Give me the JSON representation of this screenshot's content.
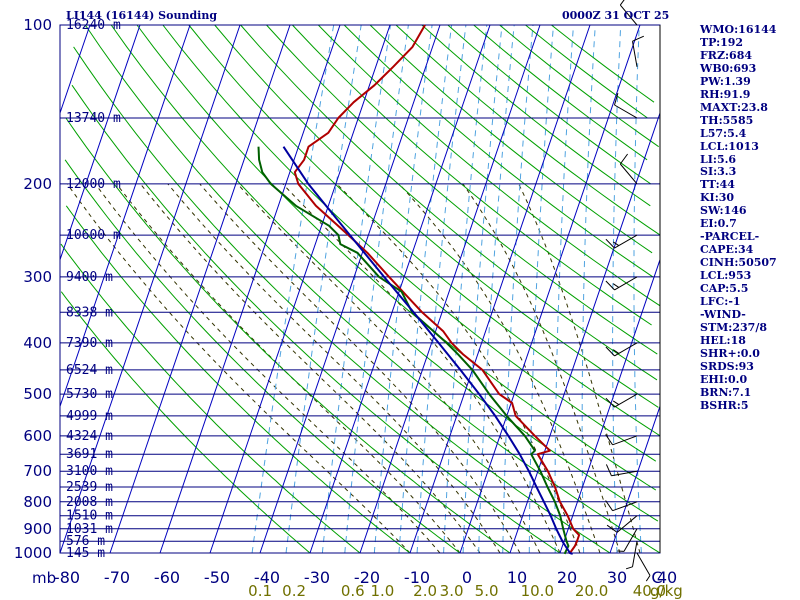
{
  "chart_data": {
    "type": "line",
    "station_title": "LI144 (16144) Sounding",
    "valid_time": "0000Z 31 OCT 25",
    "pressure_unit": "mb",
    "temperature_unit": "C",
    "mixing_ratio_unit": "g/kg",
    "pressure_levels": [
      100,
      200,
      300,
      400,
      500,
      600,
      700,
      800,
      900,
      1000
    ],
    "pressure_labels": [
      "100",
      "200",
      "300",
      "400",
      "500",
      "600",
      "700",
      "800",
      "900",
      "1000"
    ],
    "temperature_ticks": [
      -80,
      -70,
      -60,
      -50,
      -40,
      -30,
      -20,
      -10,
      0,
      10,
      20,
      30,
      40
    ],
    "temperature_labels": [
      "-80",
      "-70",
      "-60",
      "-50",
      "-40",
      "-30",
      "-20",
      "-10",
      "0",
      "10",
      "20",
      "30",
      "40"
    ],
    "mixing_ratio_labels": [
      "0.1",
      "0.2",
      "0.6",
      "1.0",
      "2.0",
      "3.0",
      "5.0",
      "10.0",
      "20.0",
      "40.0"
    ],
    "height_labels": [
      {
        "p": 100,
        "text": "16240 m"
      },
      {
        "p": 150,
        "text": "13740 m"
      },
      {
        "p": 200,
        "text": "12000 m"
      },
      {
        "p": 250,
        "text": "10600 m"
      },
      {
        "p": 300,
        "text": "9400 m"
      },
      {
        "p": 350,
        "text": "8338 m"
      },
      {
        "p": 400,
        "text": "7390 m"
      },
      {
        "p": 450,
        "text": "6524 m"
      },
      {
        "p": 500,
        "text": "5730 m"
      },
      {
        "p": 550,
        "text": "4999 m"
      },
      {
        "p": 600,
        "text": "4324 m"
      },
      {
        "p": 650,
        "text": "3691 m"
      },
      {
        "p": 700,
        "text": "3100 m"
      },
      {
        "p": 750,
        "text": "2539 m"
      },
      {
        "p": 800,
        "text": "2008 m"
      },
      {
        "p": 850,
        "text": "1510 m"
      },
      {
        "p": 900,
        "text": "1031 m"
      },
      {
        "p": 950,
        "text": "576 m"
      },
      {
        "p": 1000,
        "text": "145 m"
      }
    ],
    "series": [
      {
        "key": "temperature",
        "color": "#b00000",
        "points": [
          {
            "p": 1004,
            "t": 22.0
          },
          {
            "p": 1000,
            "t": 22.0
          },
          {
            "p": 970,
            "t": 22.5
          },
          {
            "p": 950,
            "t": 22.6
          },
          {
            "p": 925,
            "t": 22.6
          },
          {
            "p": 900,
            "t": 21.0
          },
          {
            "p": 850,
            "t": 19.0
          },
          {
            "p": 800,
            "t": 16.5
          },
          {
            "p": 750,
            "t": 14.5
          },
          {
            "p": 700,
            "t": 12.0
          },
          {
            "p": 650,
            "t": 8.8
          },
          {
            "p": 640,
            "t": 11.0
          },
          {
            "p": 600,
            "t": 7.0
          },
          {
            "p": 550,
            "t": 1.8
          },
          {
            "p": 520,
            "t": 0.2
          },
          {
            "p": 500,
            "t": -3.0
          },
          {
            "p": 450,
            "t": -8.0
          },
          {
            "p": 420,
            "t": -13.0
          },
          {
            "p": 400,
            "t": -16.0
          },
          {
            "p": 380,
            "t": -18.5
          },
          {
            "p": 350,
            "t": -24.0
          },
          {
            "p": 300,
            "t": -33.0
          },
          {
            "p": 270,
            "t": -39.0
          },
          {
            "p": 250,
            "t": -44.0
          },
          {
            "p": 220,
            "t": -52.5
          },
          {
            "p": 200,
            "t": -57.5
          },
          {
            "p": 190,
            "t": -59.0
          },
          {
            "p": 180,
            "t": -58.0
          },
          {
            "p": 170,
            "t": -58.0
          },
          {
            "p": 160,
            "t": -55.0
          },
          {
            "p": 150,
            "t": -54.0
          },
          {
            "p": 140,
            "t": -52.0
          },
          {
            "p": 130,
            "t": -49.0
          },
          {
            "p": 120,
            "t": -46.5
          },
          {
            "p": 110,
            "t": -44.0
          },
          {
            "p": 100,
            "t": -43.0
          }
        ]
      },
      {
        "key": "dewpoint",
        "color": "#006000",
        "points": [
          {
            "p": 1004,
            "t": 21.0
          },
          {
            "p": 1000,
            "t": 21.0
          },
          {
            "p": 970,
            "t": 21.2
          },
          {
            "p": 950,
            "t": 20.5
          },
          {
            "p": 900,
            "t": 19.0
          },
          {
            "p": 850,
            "t": 17.5
          },
          {
            "p": 800,
            "t": 15.5
          },
          {
            "p": 750,
            "t": 13.0
          },
          {
            "p": 700,
            "t": 10.5
          },
          {
            "p": 650,
            "t": 7.5
          },
          {
            "p": 640,
            "t": 8.0
          },
          {
            "p": 600,
            "t": 5.0
          },
          {
            "p": 550,
            "t": 0.0
          },
          {
            "p": 500,
            "t": -5.0
          },
          {
            "p": 450,
            "t": -10.0
          },
          {
            "p": 420,
            "t": -14.0
          },
          {
            "p": 400,
            "t": -17.0
          },
          {
            "p": 350,
            "t": -26.0
          },
          {
            "p": 320,
            "t": -29.5
          },
          {
            "p": 300,
            "t": -35.0
          },
          {
            "p": 270,
            "t": -41.0
          },
          {
            "p": 260,
            "t": -45.0
          },
          {
            "p": 250,
            "t": -46.0
          },
          {
            "p": 240,
            "t": -48.5
          },
          {
            "p": 220,
            "t": -56.5
          },
          {
            "p": 200,
            "t": -63.0
          },
          {
            "p": 190,
            "t": -65.5
          },
          {
            "p": 180,
            "t": -67.0
          },
          {
            "p": 170,
            "t": -68.0
          }
        ]
      },
      {
        "key": "parcel",
        "color": "#0000a0",
        "points": [
          {
            "p": 1004,
            "t": 22.6
          },
          {
            "p": 1000,
            "t": 22.0
          },
          {
            "p": 953,
            "t": 19.8
          },
          {
            "p": 900,
            "t": 17.6
          },
          {
            "p": 850,
            "t": 15.6
          },
          {
            "p": 800,
            "t": 13.3
          },
          {
            "p": 750,
            "t": 10.8
          },
          {
            "p": 700,
            "t": 8.2
          },
          {
            "p": 650,
            "t": 5.2
          },
          {
            "p": 600,
            "t": 1.7
          },
          {
            "p": 550,
            "t": -2.3
          },
          {
            "p": 500,
            "t": -7.0
          },
          {
            "p": 450,
            "t": -12.4
          },
          {
            "p": 400,
            "t": -18.6
          },
          {
            "p": 350,
            "t": -25.7
          },
          {
            "p": 300,
            "t": -34.0
          },
          {
            "p": 250,
            "t": -43.7
          },
          {
            "p": 200,
            "t": -55.5
          },
          {
            "p": 170,
            "t": -63.0
          }
        ]
      }
    ],
    "wind_barbs": [
      {
        "p": 1000,
        "dir": 150,
        "spd": 5
      },
      {
        "p": 950,
        "dir": 190,
        "spd": 5
      },
      {
        "p": 900,
        "dir": 210,
        "spd": 5
      },
      {
        "p": 850,
        "dir": 230,
        "spd": 10
      },
      {
        "p": 800,
        "dir": 250,
        "spd": 10
      },
      {
        "p": 700,
        "dir": 260,
        "spd": 10
      },
      {
        "p": 600,
        "dir": 250,
        "spd": 10
      },
      {
        "p": 500,
        "dir": 240,
        "spd": 15
      },
      {
        "p": 400,
        "dir": 240,
        "spd": 15
      },
      {
        "p": 300,
        "dir": 240,
        "spd": 15
      },
      {
        "p": 250,
        "dir": 240,
        "spd": 15
      },
      {
        "p": 200,
        "dir": 320,
        "spd": 10
      },
      {
        "p": 150,
        "dir": 300,
        "spd": 10
      },
      {
        "p": 120,
        "dir": 350,
        "spd": 10
      },
      {
        "p": 100,
        "dir": 320,
        "spd": 10
      }
    ]
  },
  "indices": [
    "WMO:16144",
    "TP:192",
    "FRZ:684",
    "WB0:693",
    "PW:1.39",
    "RH:91.9",
    "MAXT:23.8",
    "TH:5585",
    "L57:5.4",
    "LCL:1013",
    "LI:5.6",
    "SI:3.3",
    "TT:44",
    "KI:30",
    "SW:146",
    "EI:0.7",
    "-PARCEL-",
    "CAPE:34",
    "CINH:50507",
    "LCL:953",
    "CAP:5.5",
    "LFC:-1",
    "-WIND-",
    "STM:237/8",
    "HEL:18",
    "SHR+:0.0",
    "SRDS:93",
    "EHI:0.0",
    "BRN:7.1",
    "BSHR:5"
  ],
  "colors": {
    "axis": "#000080",
    "isotherm": "#0000c0",
    "dry_adiabat": "#00a000",
    "moist_adiabat": "#333300",
    "mixing_ratio": "#4fa3e0",
    "mixing_ratio_label": "#707000",
    "height_label": "#000080",
    "wind_barb": "#000000"
  }
}
